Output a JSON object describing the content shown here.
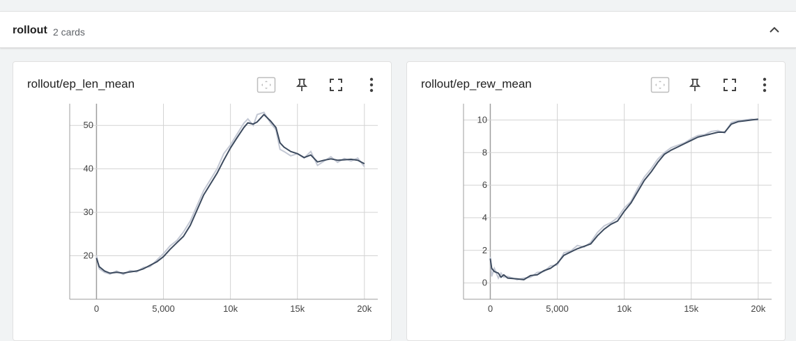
{
  "group": {
    "title": "rollout",
    "count_label": "2 cards"
  },
  "colors": {
    "smoothed_line": "#3c4a5e",
    "raw_line": "#c3c8d4",
    "grid": "#d3d3d3"
  },
  "icons": [
    "fit-domain-icon",
    "pin-icon",
    "fullscreen-icon",
    "more-vert-icon",
    "chevron-up-icon"
  ],
  "cards": [
    {
      "title": "rollout/ep_len_mean",
      "chart_data": {
        "type": "line",
        "title": "rollout/ep_len_mean",
        "xlabel": "",
        "ylabel": "",
        "x_ticks": [
          "0",
          "5,000",
          "10k",
          "15k",
          "20k"
        ],
        "y_ticks": [
          "20",
          "30",
          "40",
          "50"
        ],
        "xlim": [
          -2000,
          21000
        ],
        "ylim": [
          10,
          55
        ],
        "grid": true,
        "series": [
          {
            "values_smoothed": [
              [
                0,
                19.5
              ],
              [
                200,
                17.5
              ],
              [
                600,
                16.5
              ],
              [
                1000,
                16
              ],
              [
                1500,
                16.2
              ],
              [
                2000,
                16
              ],
              [
                2500,
                16.3
              ],
              [
                3000,
                16.5
              ],
              [
                3500,
                17
              ],
              [
                4000,
                17.8
              ],
              [
                4500,
                18.6
              ],
              [
                5000,
                19.8
              ],
              [
                5500,
                21.5
              ],
              [
                6000,
                23
              ],
              [
                6500,
                24.5
              ],
              [
                7000,
                27
              ],
              [
                7500,
                30.5
              ],
              [
                8000,
                34
              ],
              [
                8500,
                36.5
              ],
              [
                9000,
                39
              ],
              [
                9500,
                42
              ],
              [
                10000,
                44.8
              ],
              [
                10500,
                47.2
              ],
              [
                11000,
                49.5
              ],
              [
                11300,
                50.6
              ],
              [
                11700,
                50.3
              ],
              [
                12000,
                50.8
              ],
              [
                12500,
                52.5
              ],
              [
                13000,
                51
              ],
              [
                13400,
                49.5
              ],
              [
                13700,
                46
              ],
              [
                14000,
                45
              ],
              [
                14500,
                44
              ],
              [
                15000,
                43.5
              ],
              [
                15500,
                42.6
              ],
              [
                16000,
                43.2
              ],
              [
                16500,
                41.6
              ],
              [
                17000,
                42
              ],
              [
                17500,
                42.3
              ],
              [
                18000,
                42
              ],
              [
                18500,
                42.1
              ],
              [
                19000,
                42.2
              ],
              [
                19500,
                42
              ],
              [
                20000,
                41.2
              ]
            ],
            "values_raw": [
              [
                0,
                20
              ],
              [
                200,
                17
              ],
              [
                600,
                16.2
              ],
              [
                1000,
                15.8
              ],
              [
                1500,
                16.5
              ],
              [
                2000,
                15.7
              ],
              [
                2500,
                16.6
              ],
              [
                3000,
                16.3
              ],
              [
                3500,
                17.3
              ],
              [
                4000,
                17.5
              ],
              [
                4500,
                19
              ],
              [
                5000,
                20.5
              ],
              [
                5500,
                22.3
              ],
              [
                6000,
                23.5
              ],
              [
                6500,
                25.5
              ],
              [
                7000,
                28
              ],
              [
                7500,
                31.5
              ],
              [
                8000,
                35
              ],
              [
                8500,
                37.5
              ],
              [
                9000,
                40
              ],
              [
                9500,
                43.5
              ],
              [
                10000,
                45.5
              ],
              [
                10500,
                48
              ],
              [
                11000,
                50.5
              ],
              [
                11300,
                51.5
              ],
              [
                11700,
                50
              ],
              [
                12000,
                52.5
              ],
              [
                12500,
                53
              ],
              [
                13000,
                50.5
              ],
              [
                13400,
                49
              ],
              [
                13700,
                44.5
              ],
              [
                14000,
                44
              ],
              [
                14500,
                43
              ],
              [
                15000,
                43.5
              ],
              [
                15500,
                42.5
              ],
              [
                16000,
                44
              ],
              [
                16500,
                40.8
              ],
              [
                17000,
                41.8
              ],
              [
                17500,
                42.8
              ],
              [
                18000,
                41.5
              ],
              [
                18500,
                42.4
              ],
              [
                19000,
                41.8
              ],
              [
                19500,
                42.5
              ],
              [
                20000,
                40.5
              ]
            ]
          }
        ]
      }
    },
    {
      "title": "rollout/ep_rew_mean",
      "chart_data": {
        "type": "line",
        "title": "rollout/ep_rew_mean",
        "xlabel": "",
        "ylabel": "",
        "x_ticks": [
          "0",
          "5,000",
          "10k",
          "15k",
          "20k"
        ],
        "y_ticks": [
          "0",
          "2",
          "4",
          "6",
          "8",
          "10"
        ],
        "xlim": [
          -2000,
          21000
        ],
        "ylim": [
          -1,
          11
        ],
        "grid": true,
        "series": [
          {
            "values_smoothed": [
              [
                0,
                1.5
              ],
              [
                100,
                0.9
              ],
              [
                300,
                0.7
              ],
              [
                600,
                0.6
              ],
              [
                800,
                0.35
              ],
              [
                1000,
                0.5
              ],
              [
                1300,
                0.3
              ],
              [
                2000,
                0.25
              ],
              [
                2500,
                0.2
              ],
              [
                3000,
                0.45
              ],
              [
                3500,
                0.5
              ],
              [
                4000,
                0.75
              ],
              [
                4500,
                0.9
              ],
              [
                5000,
                1.2
              ],
              [
                5500,
                1.7
              ],
              [
                6000,
                1.9
              ],
              [
                6500,
                2.1
              ],
              [
                7000,
                2.25
              ],
              [
                7500,
                2.4
              ],
              [
                8000,
                2.9
              ],
              [
                8500,
                3.3
              ],
              [
                9000,
                3.6
              ],
              [
                9500,
                3.8
              ],
              [
                10000,
                4.4
              ],
              [
                10500,
                4.9
              ],
              [
                11000,
                5.6
              ],
              [
                11500,
                6.3
              ],
              [
                12000,
                6.8
              ],
              [
                12500,
                7.4
              ],
              [
                13000,
                7.9
              ],
              [
                13500,
                8.15
              ],
              [
                14000,
                8.35
              ],
              [
                14500,
                8.55
              ],
              [
                15000,
                8.75
              ],
              [
                15500,
                8.95
              ],
              [
                16000,
                9.05
              ],
              [
                16500,
                9.15
              ],
              [
                17000,
                9.25
              ],
              [
                17500,
                9.25
              ],
              [
                18000,
                9.75
              ],
              [
                18500,
                9.9
              ],
              [
                19000,
                9.95
              ],
              [
                19500,
                10
              ],
              [
                20000,
                10.05
              ]
            ],
            "values_raw": [
              [
                0,
                1.6
              ],
              [
                100,
                0.4
              ],
              [
                300,
                0.9
              ],
              [
                600,
                0.3
              ],
              [
                800,
                0.6
              ],
              [
                1000,
                0.35
              ],
              [
                1300,
                0.4
              ],
              [
                2000,
                0.2
              ],
              [
                2500,
                0.3
              ],
              [
                3000,
                0.35
              ],
              [
                3500,
                0.65
              ],
              [
                4000,
                0.7
              ],
              [
                4500,
                1.05
              ],
              [
                5000,
                1.1
              ],
              [
                5500,
                1.85
              ],
              [
                6000,
                1.95
              ],
              [
                6500,
                2.3
              ],
              [
                7000,
                2.2
              ],
              [
                7500,
                2.5
              ],
              [
                8000,
                3.1
              ],
              [
                8500,
                3.5
              ],
              [
                9000,
                3.7
              ],
              [
                9500,
                4.0
              ],
              [
                10000,
                4.6
              ],
              [
                10500,
                5.0
              ],
              [
                11000,
                5.8
              ],
              [
                11500,
                6.5
              ],
              [
                12000,
                7.0
              ],
              [
                12500,
                7.6
              ],
              [
                13000,
                8.0
              ],
              [
                13500,
                8.3
              ],
              [
                14000,
                8.45
              ],
              [
                14500,
                8.6
              ],
              [
                15000,
                8.85
              ],
              [
                15500,
                9.05
              ],
              [
                16000,
                9.1
              ],
              [
                16500,
                9.3
              ],
              [
                17000,
                9.35
              ],
              [
                17500,
                9.2
              ],
              [
                18000,
                9.85
              ],
              [
                18500,
                9.95
              ],
              [
                19000,
                10
              ],
              [
                19500,
                10.05
              ],
              [
                20000,
                10
              ]
            ]
          }
        ]
      }
    }
  ]
}
